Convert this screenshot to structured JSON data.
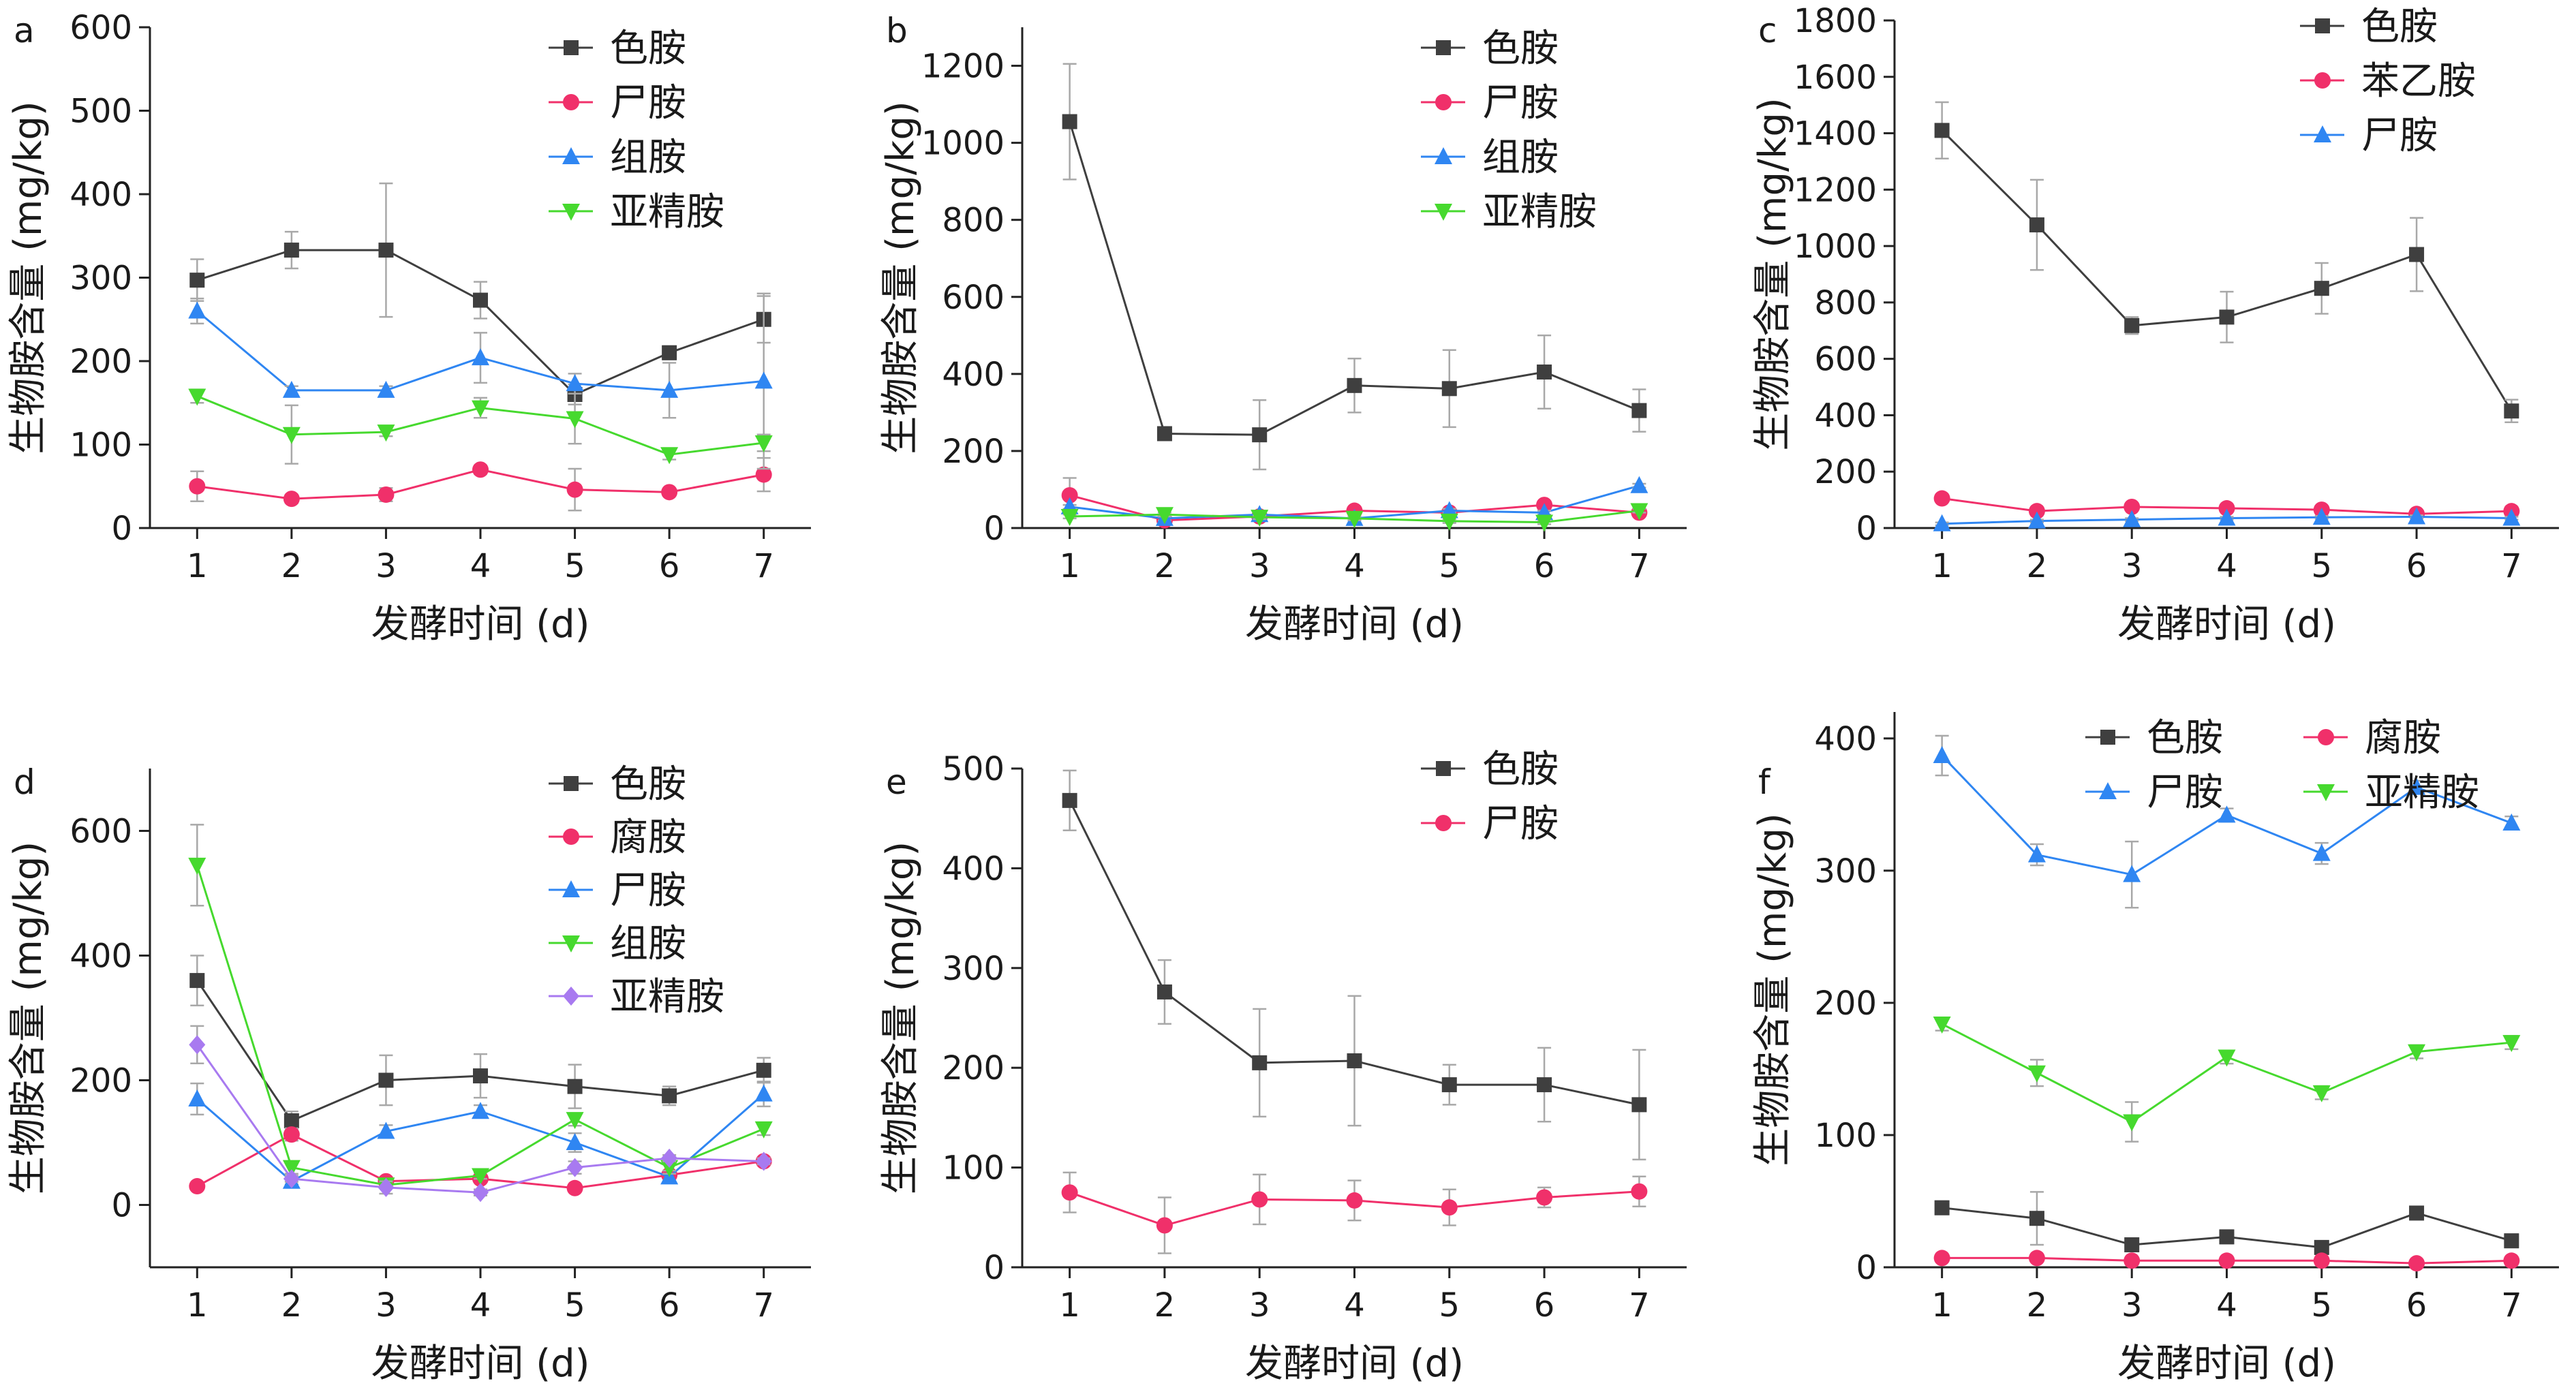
{
  "colors": {
    "色胺": "#3f3f3f",
    "尸胺": "#f0306a",
    "组胺": "#2f86f2",
    "亚精胺": "#46d92e",
    "腐胺": "#f0306a",
    "苯乙胺": "#f0306a",
    "亚精胺_d": "#a87af0",
    "error": "#a8a8a8"
  },
  "chart_data": [
    {
      "type": "line",
      "panel": "a",
      "xlabel": "发酵时间 (d)",
      "ylabel": "生物胺含量 (mg/kg)",
      "x": [
        1,
        2,
        3,
        4,
        5,
        6,
        7
      ],
      "xlim": [
        0.5,
        7.5
      ],
      "ylim": [
        0,
        600
      ],
      "yticks": [
        0,
        100,
        200,
        300,
        400,
        500,
        600
      ],
      "legend_position": "top-right",
      "series": [
        {
          "name": "色胺",
          "marker": "square",
          "color_key": "色胺",
          "values": [
            297,
            333,
            333,
            273,
            160,
            210,
            250
          ],
          "errors": [
            25,
            22,
            80,
            22,
            12,
            8,
            28
          ]
        },
        {
          "name": "尸胺",
          "marker": "circle",
          "color_key": "尸胺",
          "values": [
            50,
            35,
            40,
            70,
            46,
            43,
            64
          ],
          "errors": [
            18,
            5,
            8,
            5,
            25,
            4,
            20
          ]
        },
        {
          "name": "组胺",
          "marker": "triangle-up",
          "color_key": "组胺",
          "values": [
            260,
            165,
            165,
            204,
            173,
            165,
            176
          ],
          "errors": [
            15,
            5,
            5,
            30,
            12,
            33,
            105
          ]
        },
        {
          "name": "亚精胺",
          "marker": "triangle-down",
          "color_key": "亚精胺",
          "values": [
            158,
            112,
            115,
            144,
            131,
            88,
            102
          ],
          "errors": [
            8,
            35,
            5,
            12,
            30,
            6,
            10
          ]
        }
      ]
    },
    {
      "type": "line",
      "panel": "b",
      "xlabel": "发酵时间 (d)",
      "ylabel": "生物胺含量 (mg/kg)",
      "x": [
        1,
        2,
        3,
        4,
        5,
        6,
        7
      ],
      "xlim": [
        0.5,
        7.5
      ],
      "ylim": [
        0,
        1300
      ],
      "yticks": [
        0,
        200,
        400,
        600,
        800,
        1000,
        1200
      ],
      "legend_position": "top-right",
      "series": [
        {
          "name": "色胺",
          "marker": "square",
          "color_key": "色胺",
          "values": [
            1055,
            245,
            242,
            370,
            362,
            405,
            305
          ],
          "errors": [
            150,
            10,
            90,
            70,
            100,
            95,
            55
          ]
        },
        {
          "name": "尸胺",
          "marker": "circle",
          "color_key": "尸胺",
          "values": [
            85,
            20,
            30,
            45,
            40,
            60,
            40
          ],
          "errors": [
            45,
            5,
            5,
            5,
            5,
            5,
            5
          ]
        },
        {
          "name": "组胺",
          "marker": "triangle-up",
          "color_key": "组胺",
          "values": [
            55,
            25,
            35,
            25,
            45,
            40,
            110
          ],
          "errors": [
            5,
            5,
            5,
            5,
            5,
            5,
            5
          ]
        },
        {
          "name": "亚精胺",
          "marker": "triangle-down",
          "color_key": "亚精胺",
          "values": [
            30,
            35,
            28,
            25,
            18,
            15,
            45
          ],
          "errors": [
            5,
            5,
            5,
            5,
            5,
            5,
            5
          ]
        }
      ]
    },
    {
      "type": "line",
      "panel": "c",
      "xlabel": "发酵时间 (d)",
      "ylabel": "生物胺含量 (mg/kg)",
      "x": [
        1,
        2,
        3,
        4,
        5,
        6,
        7
      ],
      "xlim": [
        0.5,
        7.5
      ],
      "ylim": [
        0,
        1800
      ],
      "yticks": [
        0,
        200,
        400,
        600,
        800,
        1000,
        1200,
        1400,
        1600,
        1800
      ],
      "legend_position": "top-right",
      "series": [
        {
          "name": "色胺",
          "marker": "square",
          "color_key": "色胺",
          "values": [
            1410,
            1075,
            718,
            748,
            850,
            970,
            415
          ],
          "errors": [
            100,
            160,
            30,
            90,
            90,
            130,
            40
          ]
        },
        {
          "name": "苯乙胺",
          "marker": "circle",
          "color_key": "苯乙胺",
          "values": [
            105,
            60,
            75,
            70,
            65,
            50,
            60
          ],
          "errors": [
            10,
            10,
            10,
            10,
            10,
            10,
            10
          ]
        },
        {
          "name": "尸胺",
          "marker": "triangle-up",
          "color_key": "组胺",
          "values": [
            15,
            25,
            30,
            35,
            38,
            40,
            35
          ],
          "errors": [
            5,
            5,
            5,
            5,
            5,
            5,
            5
          ]
        }
      ]
    },
    {
      "type": "line",
      "panel": "d",
      "xlabel": "发酵时间 (d)",
      "ylabel": "生物胺含量 (mg/kg)",
      "x": [
        1,
        2,
        3,
        4,
        5,
        6,
        7
      ],
      "xlim": [
        0.5,
        7.5
      ],
      "ylim": [
        -100,
        700
      ],
      "yticks": [
        0,
        200,
        400,
        600
      ],
      "legend_position": "top-right",
      "series": [
        {
          "name": "色胺",
          "marker": "square",
          "color_key": "色胺",
          "values": [
            360,
            135,
            200,
            207,
            190,
            175,
            216
          ],
          "errors": [
            40,
            15,
            40,
            35,
            35,
            15,
            20
          ]
        },
        {
          "name": "腐胺",
          "marker": "circle",
          "color_key": "腐胺",
          "values": [
            30,
            113,
            38,
            42,
            27,
            48,
            70
          ],
          "errors": [
            5,
            10,
            5,
            5,
            5,
            5,
            5
          ]
        },
        {
          "name": "尸胺",
          "marker": "triangle-up",
          "color_key": "组胺",
          "values": [
            170,
            38,
            118,
            150,
            100,
            45,
            178
          ],
          "errors": [
            25,
            5,
            10,
            10,
            15,
            10,
            20
          ]
        },
        {
          "name": "组胺",
          "marker": "triangle-down",
          "color_key": "亚精胺",
          "values": [
            545,
            60,
            32,
            47,
            137,
            60,
            122
          ],
          "errors": [
            65,
            10,
            5,
            5,
            10,
            10,
            10
          ]
        },
        {
          "name": "亚精胺",
          "marker": "diamond",
          "color_key": "亚精胺_d",
          "values": [
            257,
            42,
            28,
            20,
            60,
            75,
            70
          ],
          "errors": [
            30,
            5,
            10,
            5,
            10,
            5,
            5
          ]
        }
      ]
    },
    {
      "type": "line",
      "panel": "e",
      "xlabel": "发酵时间 (d)",
      "ylabel": "生物胺含量 (mg/kg)",
      "x": [
        1,
        2,
        3,
        4,
        5,
        6,
        7
      ],
      "xlim": [
        0.5,
        7.5
      ],
      "ylim": [
        0,
        500
      ],
      "yticks": [
        0,
        100,
        200,
        300,
        400,
        500
      ],
      "legend_position": "top-right",
      "series": [
        {
          "name": "色胺",
          "marker": "square",
          "color_key": "色胺",
          "values": [
            468,
            276,
            205,
            207,
            183,
            183,
            163
          ],
          "errors": [
            30,
            32,
            54,
            65,
            20,
            37,
            55
          ]
        },
        {
          "name": "尸胺",
          "marker": "circle",
          "color_key": "尸胺",
          "values": [
            75,
            42,
            68,
            67,
            60,
            70,
            76
          ],
          "errors": [
            20,
            28,
            25,
            20,
            18,
            10,
            15
          ]
        }
      ]
    },
    {
      "type": "line",
      "panel": "f",
      "xlabel": "发酵时间 (d)",
      "ylabel": "生物胺含量 (mg/kg)",
      "x": [
        1,
        2,
        3,
        4,
        5,
        6,
        7
      ],
      "xlim": [
        0.5,
        7.5
      ],
      "ylim": [
        0,
        420
      ],
      "yticks": [
        0,
        100,
        200,
        300,
        400
      ],
      "legend_position": "top-right",
      "series": [
        {
          "name": "色胺",
          "marker": "square",
          "color_key": "色胺",
          "values": [
            45,
            37,
            17,
            23,
            15,
            41,
            20
          ],
          "errors": [
            5,
            20,
            5,
            5,
            5,
            5,
            5
          ]
        },
        {
          "name": "腐胺",
          "marker": "circle",
          "color_key": "腐胺",
          "values": [
            7,
            7,
            5,
            5,
            5,
            3,
            5
          ],
          "errors": [
            2,
            2,
            2,
            2,
            2,
            2,
            2
          ]
        },
        {
          "name": "尸胺",
          "marker": "triangle-up",
          "color_key": "组胺",
          "values": [
            387,
            312,
            297,
            342,
            313,
            363,
            336
          ],
          "errors": [
            15,
            8,
            25,
            5,
            8,
            5,
            5
          ]
        },
        {
          "name": "亚精胺",
          "marker": "triangle-down",
          "color_key": "亚精胺",
          "values": [
            184,
            147,
            110,
            159,
            132,
            163,
            170
          ],
          "errors": [
            5,
            10,
            15,
            5,
            5,
            5,
            5
          ]
        }
      ]
    }
  ]
}
